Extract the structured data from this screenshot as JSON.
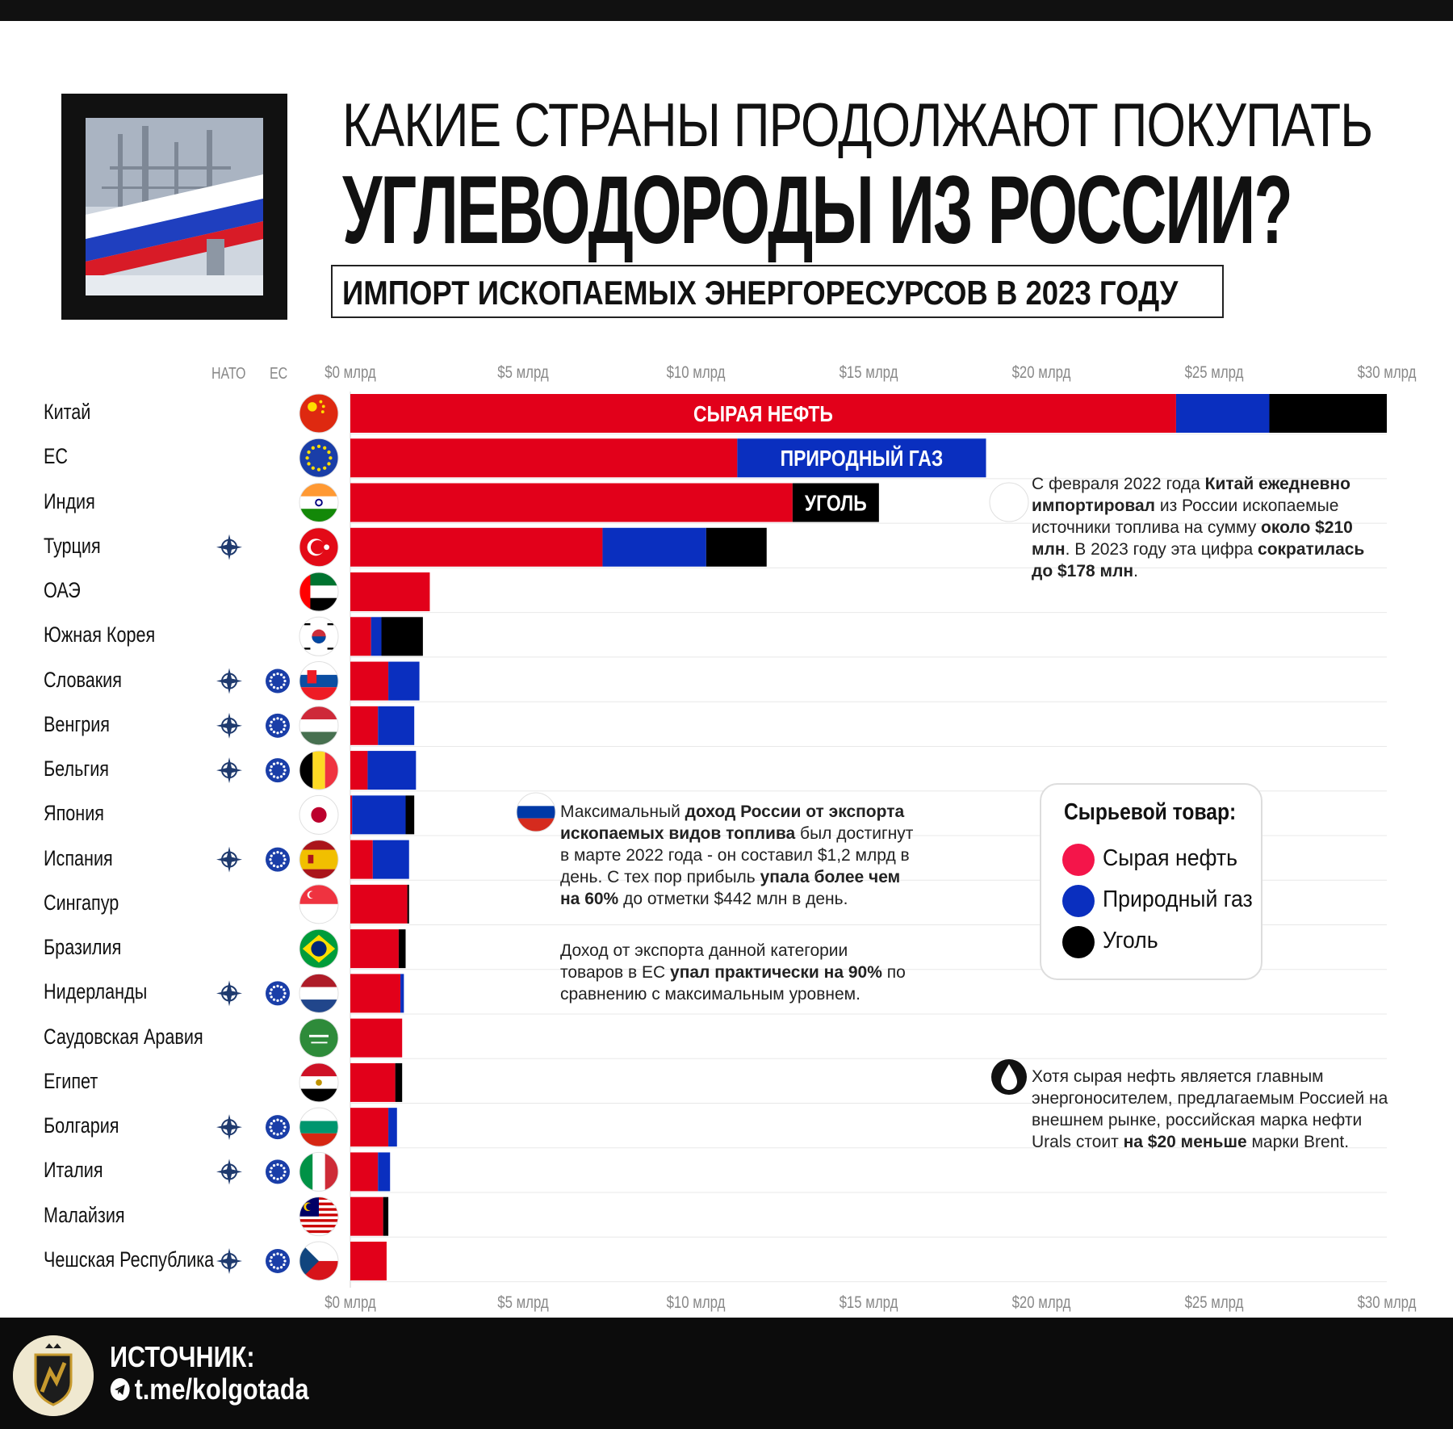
{
  "header": {
    "title_line1": "КАКИЕ СТРАНЫ ПРОДОЛЖАЮТ ПОКУПАТЬ",
    "title_line2": "УГЛЕВОДОРОДЫ ИЗ РОССИИ?",
    "subtitle": "ИМПОРТ ИСКОПАЕМЫХ ЭНЕРГОРЕСУРСОВ В 2023 ГОДУ"
  },
  "columns": {
    "nato": "НАТО",
    "eu": "ЕС"
  },
  "colors": {
    "oil": "#e2001a",
    "gas": "#0a2fbf",
    "coal": "#000000",
    "grid": "#e8e8e8"
  },
  "chart_data": {
    "type": "bar",
    "orientation": "horizontal",
    "stacked": true,
    "unit": "млрд $",
    "xlim": [
      0,
      30
    ],
    "tick_values": [
      0,
      5,
      10,
      15,
      20,
      25,
      30
    ],
    "tick_labels": [
      "$0 млрд",
      "$5 млрд",
      "$10 млрд",
      "$15 млрд",
      "$20 млрд",
      "$25 млрд",
      "$30 млрд"
    ],
    "series_names": [
      "Сырая нефть",
      "Природный газ",
      "Уголь"
    ],
    "segment_labels": {
      "oil": "СЫРАЯ НЕФТЬ",
      "gas": "ПРИРОДНЫЙ ГАЗ",
      "coal": "УГОЛЬ"
    },
    "rows": [
      {
        "country": "Китай",
        "flag": "china-flag",
        "nato": false,
        "eu": false,
        "oil": 23.9,
        "gas": 2.7,
        "coal": 3.4,
        "label_on": "oil"
      },
      {
        "country": "ЕС",
        "flag": "eu-flag",
        "nato": false,
        "eu": false,
        "oil": 11.2,
        "gas": 7.2,
        "coal": 0,
        "label_on": "gas"
      },
      {
        "country": "Индия",
        "flag": "india-flag",
        "nato": false,
        "eu": false,
        "oil": 12.8,
        "gas": 0,
        "coal": 2.5,
        "label_on": "coal"
      },
      {
        "country": "Турция",
        "flag": "turkey-flag",
        "nato": true,
        "eu": false,
        "oil": 7.3,
        "gas": 3.0,
        "coal": 1.75
      },
      {
        "country": "ОАЭ",
        "flag": "uae-flag",
        "nato": false,
        "eu": false,
        "oil": 2.3,
        "gas": 0,
        "coal": 0
      },
      {
        "country": "Южная Корея",
        "flag": "korea-flag",
        "nato": false,
        "eu": false,
        "oil": 0.6,
        "gas": 0.3,
        "coal": 1.2
      },
      {
        "country": "Словакия",
        "flag": "slovakia-flag",
        "nato": true,
        "eu": true,
        "oil": 1.1,
        "gas": 0.9,
        "coal": 0
      },
      {
        "country": "Венгрия",
        "flag": "hungary-flag",
        "nato": true,
        "eu": true,
        "oil": 0.8,
        "gas": 1.05,
        "coal": 0
      },
      {
        "country": "Бельгия",
        "flag": "belgium-flag",
        "nato": true,
        "eu": true,
        "oil": 0.5,
        "gas": 1.4,
        "coal": 0
      },
      {
        "country": "Япония",
        "flag": "japan-flag",
        "nato": false,
        "eu": false,
        "oil": 0.05,
        "gas": 1.55,
        "coal": 0.25
      },
      {
        "country": "Испания",
        "flag": "spain-flag",
        "nato": true,
        "eu": true,
        "oil": 0.65,
        "gas": 1.05,
        "coal": 0
      },
      {
        "country": "Сингапур",
        "flag": "singapore-flag",
        "nato": false,
        "eu": false,
        "oil": 1.65,
        "gas": 0,
        "coal": 0.05
      },
      {
        "country": "Бразилия",
        "flag": "brazil-flag",
        "nato": false,
        "eu": false,
        "oil": 1.4,
        "gas": 0,
        "coal": 0.2
      },
      {
        "country": "Нидерланды",
        "flag": "netherlands-flag",
        "nato": true,
        "eu": true,
        "oil": 1.45,
        "gas": 0.1,
        "coal": 0
      },
      {
        "country": "Саудовская Аравия",
        "flag": "saudi-flag",
        "nato": false,
        "eu": false,
        "oil": 1.5,
        "gas": 0,
        "coal": 0
      },
      {
        "country": "Египет",
        "flag": "egypt-flag",
        "nato": false,
        "eu": false,
        "oil": 1.3,
        "gas": 0,
        "coal": 0.2
      },
      {
        "country": "Болгария",
        "flag": "bulgaria-flag",
        "nato": true,
        "eu": true,
        "oil": 1.1,
        "gas": 0.25,
        "coal": 0
      },
      {
        "country": "Италия",
        "flag": "italy-flag",
        "nato": true,
        "eu": true,
        "oil": 0.8,
        "gas": 0.35,
        "coal": 0
      },
      {
        "country": "Малайзия",
        "flag": "malaysia-flag",
        "nato": false,
        "eu": false,
        "oil": 0.95,
        "gas": 0,
        "coal": 0.15
      },
      {
        "country": "Чешская Республика",
        "flag": "czech-flag",
        "nato": true,
        "eu": true,
        "oil": 1.05,
        "gas": 0,
        "coal": 0
      }
    ]
  },
  "annotations": {
    "china": {
      "icon": "china-flag",
      "parts": [
        {
          "t": "С февраля 2022 года ",
          "b": false
        },
        {
          "t": "Китай ежедневно импортировал",
          "b": true
        },
        {
          "t": " из России ископаемые источники топлива на сумму ",
          "b": false
        },
        {
          "t": "около $210 млн",
          "b": true
        },
        {
          "t": ". В 2023 году эта цифра ",
          "b": false
        },
        {
          "t": "сократилась до $178 млн",
          "b": true
        },
        {
          "t": ".",
          "b": false
        }
      ]
    },
    "russia": {
      "icon": "russia-flag",
      "parts": [
        {
          "t": "Максимальный ",
          "b": false
        },
        {
          "t": "доход России от экспорта ископаемых видов топлива",
          "b": true
        },
        {
          "t": " был достигнут в марте 2022 года - он составил $1,2 млрд в день. С тех пор прибыль ",
          "b": false
        },
        {
          "t": "упала более чем на 60%",
          "b": true
        },
        {
          "t": " до отметки $442 млн в день.",
          "b": false
        }
      ]
    },
    "eu": {
      "parts": [
        {
          "t": "Доход от экспорта данной категории товаров в ЕС ",
          "b": false
        },
        {
          "t": "упал практически на 90%",
          "b": true
        },
        {
          "t": " по сравнению с максимальным уровнем.",
          "b": false
        }
      ]
    },
    "oil": {
      "icon": "oil-drop-icon",
      "parts": [
        {
          "t": "Хотя сырая нефть является главным энергоносителем, предлагаемым Россией на внешнем рынке, российская марка нефти Urals стоит ",
          "b": false
        },
        {
          "t": "на $20 меньше",
          "b": true
        },
        {
          "t": " марки Brent.",
          "b": false
        }
      ]
    }
  },
  "legend": {
    "title": "Сырьевой товар:",
    "items": [
      {
        "label": "Сырая нефть",
        "color": "#f4154a"
      },
      {
        "label": "Природный газ",
        "color": "#0a2fbf"
      },
      {
        "label": "Уголь",
        "color": "#000000"
      }
    ]
  },
  "footer": {
    "source_label": "ИСТОЧНИК:",
    "source_link": "t.me/kolgotada"
  }
}
